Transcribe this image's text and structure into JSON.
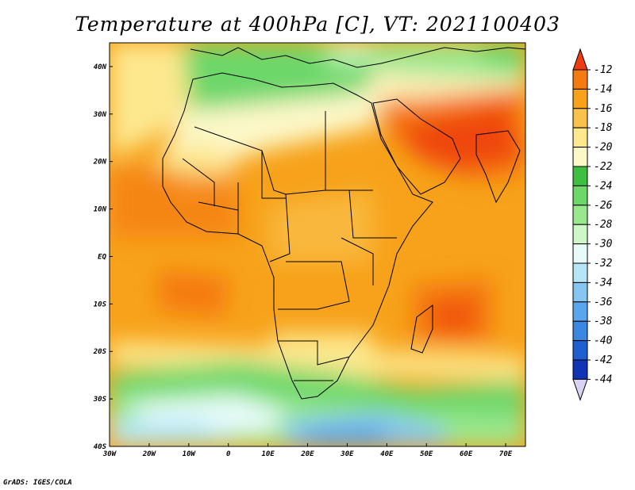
{
  "title": "Temperature at 400hPa [C], VT: 2021100403",
  "credit": "GrADS: IGES/COLA",
  "map": {
    "lon_range": [
      -30,
      75
    ],
    "lat_range": [
      -40,
      45
    ],
    "lon_ticks": [
      "30W",
      "20W",
      "10W",
      "0",
      "10E",
      "20E",
      "30E",
      "40E",
      "50E",
      "60E",
      "70E"
    ],
    "lat_ticks": [
      "40N",
      "30N",
      "20N",
      "10N",
      "EQ",
      "10S",
      "20S",
      "30S",
      "40S"
    ]
  },
  "colorbar": {
    "levels": [
      "-12",
      "-14",
      "-16",
      "-18",
      "-20",
      "-22",
      "-24",
      "-26",
      "-28",
      "-30",
      "-32",
      "-34",
      "-36",
      "-38",
      "-40",
      "-42",
      "-44"
    ],
    "colors": [
      "#ee3b12",
      "#f57a10",
      "#f7a21a",
      "#f9c24c",
      "#fde88e",
      "#fcf8c8",
      "#3fbf3f",
      "#6dd76a",
      "#9ae88e",
      "#cdf7c6",
      "#e8fbfb",
      "#b5e6f7",
      "#85c6f2",
      "#5aa6ec",
      "#3c87e0",
      "#1f5fcf",
      "#1233b3",
      "#0b1b80"
    ]
  }
}
